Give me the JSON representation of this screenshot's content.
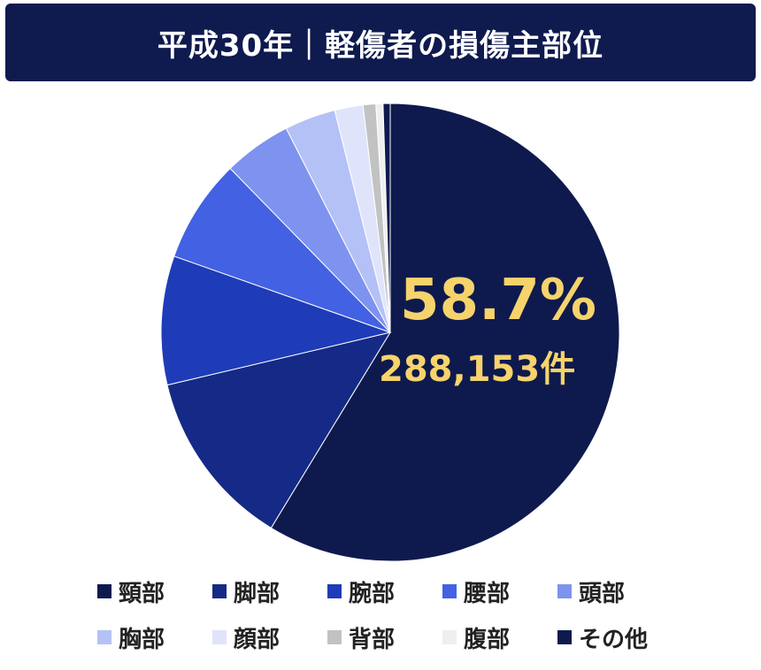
{
  "title": "平成30年｜軽傷者の損傷主部位",
  "highlight": {
    "percent": "58.7%",
    "count": "288,153件"
  },
  "chart_data": {
    "type": "pie",
    "title": "平成30年｜軽傷者の損傷主部位",
    "start_angle_deg": 0,
    "direction": "clockwise",
    "legend_position": "bottom",
    "slices": [
      {
        "label": "頸部",
        "value": 58.7,
        "color": "#0e1a4e"
      },
      {
        "label": "脚部",
        "value": 12.6,
        "color": "#152a86"
      },
      {
        "label": "腕部",
        "value": 9.1,
        "color": "#1e3cb8"
      },
      {
        "label": "腰部",
        "value": 7.3,
        "color": "#4361e3"
      },
      {
        "label": "頭部",
        "value": 4.8,
        "color": "#7e93ef"
      },
      {
        "label": "胸部",
        "value": 3.6,
        "color": "#b4c1f6"
      },
      {
        "label": "顔部",
        "value": 2.0,
        "color": "#dfe4fb"
      },
      {
        "label": "背部",
        "value": 0.9,
        "color": "#c2c2c2"
      },
      {
        "label": "腹部",
        "value": 0.5,
        "color": "#efefef"
      },
      {
        "label": "その他",
        "value": 0.5,
        "color": "#0e1a4e"
      }
    ]
  }
}
